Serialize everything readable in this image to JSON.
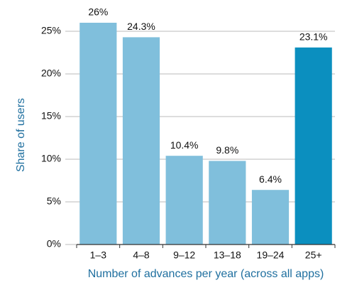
{
  "chart_data": {
    "type": "bar",
    "x_label": "Number of advances per year (across all apps)",
    "y_label": "Share of users",
    "categories": [
      "1–3",
      "4–8",
      "9–12",
      "13–18",
      "19–24",
      "25+"
    ],
    "values": [
      26,
      24.3,
      10.4,
      9.8,
      6.4,
      23.1
    ],
    "value_labels": [
      "26%",
      "24.3%",
      "10.4%",
      "9.8%",
      "6.4%",
      "23.1%"
    ],
    "colors": [
      "#80bfdc",
      "#80bfdc",
      "#80bfdc",
      "#80bfdc",
      "#80bfdc",
      "#0b8fbf"
    ],
    "ylim": [
      0,
      27.5
    ],
    "yticks": [
      {
        "value": 0,
        "label": "0%"
      },
      {
        "value": 5,
        "label": "5%"
      },
      {
        "value": 10,
        "label": "10%"
      },
      {
        "value": 15,
        "label": "15%"
      },
      {
        "value": 20,
        "label": "20%"
      },
      {
        "value": 25,
        "label": "25%"
      }
    ],
    "grid": true
  }
}
